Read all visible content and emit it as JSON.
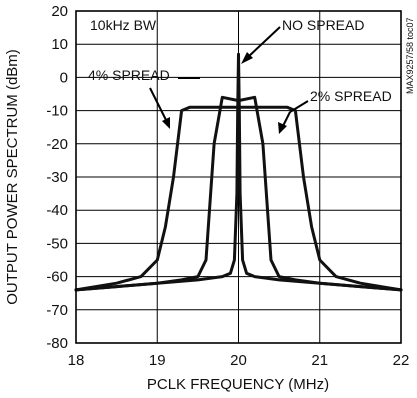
{
  "chart_data": {
    "type": "line",
    "title": "",
    "xlabel": "PCLK FREQUENCY (MHz)",
    "ylabel": "OUTPUT POWER SPECTRUM (dBm)",
    "xlim": [
      18,
      22
    ],
    "ylim": [
      -80,
      20
    ],
    "x_ticks": [
      "18",
      "19",
      "20",
      "21",
      "22"
    ],
    "y_ticks": [
      "20",
      "10",
      "0",
      "-10",
      "-20",
      "-30",
      "-40",
      "-50",
      "-60",
      "-70",
      "-80"
    ],
    "grid": true,
    "figure_id": "MAX9257/58 toc07",
    "annotations": {
      "bandwidth": "10kHz BW",
      "no_spread": "NO SPREAD",
      "spread_4": "4% SPREAD",
      "spread_2": "2% SPREAD"
    },
    "series": [
      {
        "name": "NO SPREAD",
        "x": [
          18.0,
          18.5,
          19.0,
          19.5,
          19.8,
          19.9,
          19.95,
          19.98,
          19.99,
          20.0,
          20.01,
          20.02,
          20.05,
          20.1,
          20.2,
          20.5,
          21.0,
          21.5,
          22.0
        ],
        "y": [
          -64,
          -63,
          -62,
          -61,
          -60,
          -59,
          -55,
          -35,
          -10,
          7,
          -10,
          -35,
          -55,
          -59,
          -60,
          -61,
          -62,
          -63,
          -64
        ]
      },
      {
        "name": "2% SPREAD",
        "x": [
          18.0,
          18.5,
          19.0,
          19.3,
          19.5,
          19.6,
          19.7,
          19.8,
          20.0,
          20.2,
          20.3,
          20.4,
          20.5,
          20.7,
          21.0,
          21.5,
          22.0
        ],
        "y": [
          -64,
          -63,
          -62,
          -61,
          -60,
          -55,
          -20,
          -6,
          -7,
          -6,
          -20,
          -55,
          -60,
          -61,
          -62,
          -63,
          -64
        ]
      },
      {
        "name": "4% SPREAD",
        "x": [
          18.0,
          18.5,
          18.8,
          19.0,
          19.1,
          19.2,
          19.3,
          19.4,
          19.7,
          20.0,
          20.3,
          20.6,
          20.7,
          20.8,
          20.9,
          21.0,
          21.2,
          21.5,
          22.0
        ],
        "y": [
          -64,
          -62,
          -60,
          -55,
          -45,
          -30,
          -10,
          -9,
          -9,
          -9,
          -9,
          -9,
          -10,
          -30,
          -45,
          -55,
          -60,
          -62,
          -64
        ]
      }
    ]
  }
}
